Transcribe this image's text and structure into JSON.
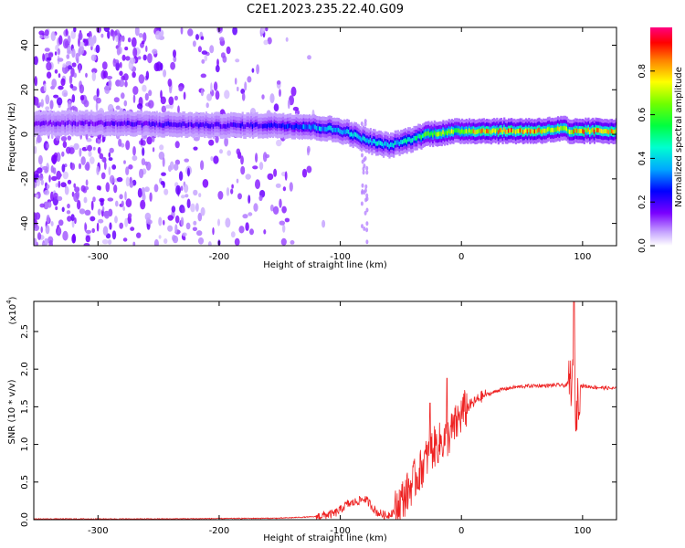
{
  "title": "C2E1.2023.235.22.40.G09",
  "chart_data": [
    {
      "type": "heatmap",
      "xlabel": "Height of straight line (km)",
      "ylabel": "Frequency (Hz)",
      "xlim": [
        -353,
        128
      ],
      "ylim": [
        -50,
        48
      ],
      "xticks": [
        -300,
        -200,
        -100,
        0,
        100
      ],
      "yticks": [
        -40,
        -20,
        0,
        20,
        40
      ],
      "colorbar": {
        "label": "Normalized spectral amplitude",
        "range": [
          0,
          1
        ],
        "ticks": [
          "0.0",
          "0.2",
          "0.4",
          "0.6",
          "0.8"
        ]
      },
      "ridge": {
        "x": [
          -353,
          -300,
          -250,
          -200,
          -150,
          -130,
          -110,
          -95,
          -80,
          -70,
          -60,
          -50,
          -40,
          -30,
          -20,
          -10,
          0,
          20,
          60,
          85,
          90,
          95,
          128
        ],
        "frequency": [
          5,
          5,
          4.5,
          4,
          4,
          3.5,
          2.5,
          1,
          -2.5,
          -4,
          -5,
          -3.5,
          -2,
          0,
          0.5,
          1,
          1.5,
          1.5,
          1.5,
          2.5,
          0.5,
          1.5,
          1.5
        ],
        "amplitude": [
          0.15,
          0.18,
          0.2,
          0.2,
          0.25,
          0.35,
          0.4,
          0.42,
          0.45,
          0.45,
          0.42,
          0.45,
          0.48,
          0.6,
          0.75,
          0.7,
          0.72,
          0.85,
          0.88,
          0.7,
          0.8,
          0.85,
          0.85
        ]
      }
    },
    {
      "type": "line",
      "xlabel": "Height of straight line (km)",
      "ylabel": "SNR (10 * v/v)",
      "y_multiplier": "(x10",
      "y_multiplier_exp": "4",
      "y_multiplier_close": ")",
      "xlim": [
        -353,
        128
      ],
      "ylim": [
        0,
        2.9
      ],
      "xticks": [
        -300,
        -200,
        -100,
        0,
        100
      ],
      "yticks": [
        "0.0",
        "0.5",
        "1.0",
        "1.5",
        "2.0",
        "2.5"
      ],
      "color": "#ee2222",
      "series": [
        {
          "x": [
            -353,
            -250,
            -150,
            -120,
            -105,
            -100,
            -95,
            -90,
            -85,
            -80,
            -75,
            -70,
            -62,
            -55,
            -50,
            -45,
            -40,
            -35,
            -30,
            -25,
            -20,
            -15,
            -10,
            -5,
            0,
            5,
            10,
            15,
            20,
            25,
            30,
            40,
            50,
            60,
            70,
            80,
            86,
            90,
            93,
            95,
            98,
            110,
            128
          ],
          "y": [
            0.01,
            0.01,
            0.02,
            0.04,
            0.08,
            0.13,
            0.2,
            0.22,
            0.25,
            0.28,
            0.2,
            0.1,
            0.05,
            0.12,
            0.25,
            0.35,
            0.5,
            0.62,
            0.78,
            0.92,
            1.0,
            1.05,
            1.12,
            1.25,
            1.4,
            1.5,
            1.55,
            1.62,
            1.66,
            1.68,
            1.72,
            1.75,
            1.77,
            1.78,
            1.78,
            1.79,
            1.78,
            1.85,
            1.8,
            1.5,
            1.78,
            1.76,
            1.74
          ]
        }
      ]
    }
  ]
}
